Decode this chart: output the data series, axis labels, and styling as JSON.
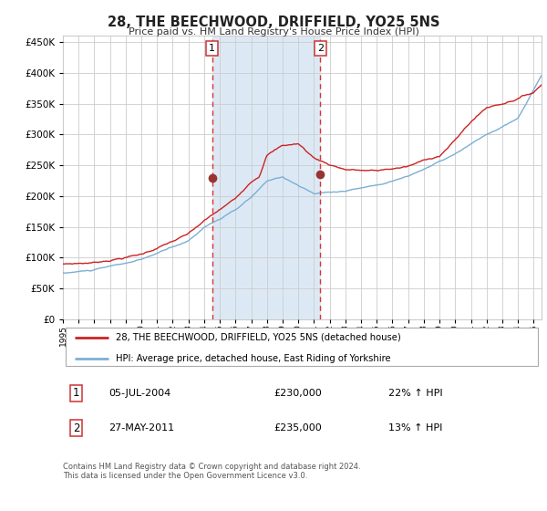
{
  "title": "28, THE BEECHWOOD, DRIFFIELD, YO25 5NS",
  "subtitle": "Price paid vs. HM Land Registry's House Price Index (HPI)",
  "legend_line1": "28, THE BEECHWOOD, DRIFFIELD, YO25 5NS (detached house)",
  "legend_line2": "HPI: Average price, detached house, East Riding of Yorkshire",
  "transaction1_date": "05-JUL-2004",
  "transaction1_price": 230000,
  "transaction1_label": "22% ↑ HPI",
  "transaction2_date": "27-MAY-2011",
  "transaction2_price": 235000,
  "transaction2_label": "13% ↑ HPI",
  "footer": "Contains HM Land Registry data © Crown copyright and database right 2024.\nThis data is licensed under the Open Government Licence v3.0.",
  "hpi_color": "#7bafd4",
  "price_color": "#cc2222",
  "marker_color": "#993333",
  "vline_color": "#dd3333",
  "shade_color": "#dce9f5",
  "grid_color": "#cccccc",
  "bg_color": "#ffffff",
  "ylim": [
    0,
    460000
  ],
  "yticks": [
    0,
    50000,
    100000,
    150000,
    200000,
    250000,
    300000,
    350000,
    400000,
    450000
  ],
  "year_start": 1995,
  "year_end": 2025,
  "transaction1_year": 2004.5,
  "transaction2_year": 2011.4
}
